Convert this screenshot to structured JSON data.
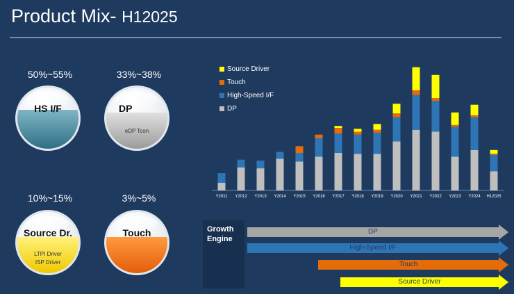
{
  "page": {
    "title_main": "Product Mix-",
    "title_period": "H12025"
  },
  "colors": {
    "background": "#1f3a5f",
    "source_driver": "#ffff00",
    "touch": "#e46c0a",
    "hs_if": "#2e75b6",
    "dp": "#bfbfbf"
  },
  "segments": [
    {
      "range": "50%~55%",
      "name": "HS I/F",
      "sub_labels": []
    },
    {
      "range": "33%~38%",
      "name": "DP",
      "sub_labels": [
        "eDP Tcon"
      ]
    },
    {
      "range": "10%~15%",
      "name": "Source Dr.",
      "sub_labels": [
        "LTPI Driver",
        "ISP Driver"
      ]
    },
    {
      "range": "3%~5%",
      "name": "Touch",
      "sub_labels": []
    }
  ],
  "growth": {
    "label_line1": "Growth",
    "label_line2": "Engine",
    "arrows": [
      "DP",
      "High-Speed I/F",
      "Touch",
      "Source Driver"
    ]
  },
  "chart_data": {
    "type": "bar",
    "stacked": true,
    "categories": [
      "Y2011",
      "Y2012",
      "Y2013",
      "Y2014",
      "Y2015",
      "Y2016",
      "Y2017",
      "Y2018",
      "Y2019",
      "Y2020",
      "Y2021",
      "Y2022",
      "Y2023",
      "Y2024",
      "H12025"
    ],
    "series": [
      {
        "name": "DP",
        "color": "#bfbfbf",
        "values": [
          8,
          24,
          23,
          33,
          30,
          35,
          39,
          38,
          38,
          51,
          63,
          61,
          35,
          42,
          20
        ]
      },
      {
        "name": "High-Speed I/F",
        "color": "#2e75b6",
        "values": [
          10,
          8,
          8,
          7,
          9,
          19,
          20,
          20,
          22,
          25,
          36,
          32,
          31,
          34,
          17
        ]
      },
      {
        "name": "Touch",
        "color": "#e46c0a",
        "values": [
          0,
          0,
          0,
          0,
          7,
          4,
          6,
          3,
          3,
          4,
          5,
          3,
          2,
          2,
          1
        ]
      },
      {
        "name": "Source Driver",
        "color": "#ffff00",
        "values": [
          0,
          0,
          0,
          0,
          0,
          0,
          2,
          3,
          6,
          10,
          24,
          24,
          13,
          11,
          4
        ]
      }
    ],
    "legend": [
      "Source Driver",
      "Touch",
      "High-Speed I/F",
      "DP"
    ],
    "legend_position": "top-left",
    "ylim": [
      0,
      135
    ],
    "grid": false
  }
}
